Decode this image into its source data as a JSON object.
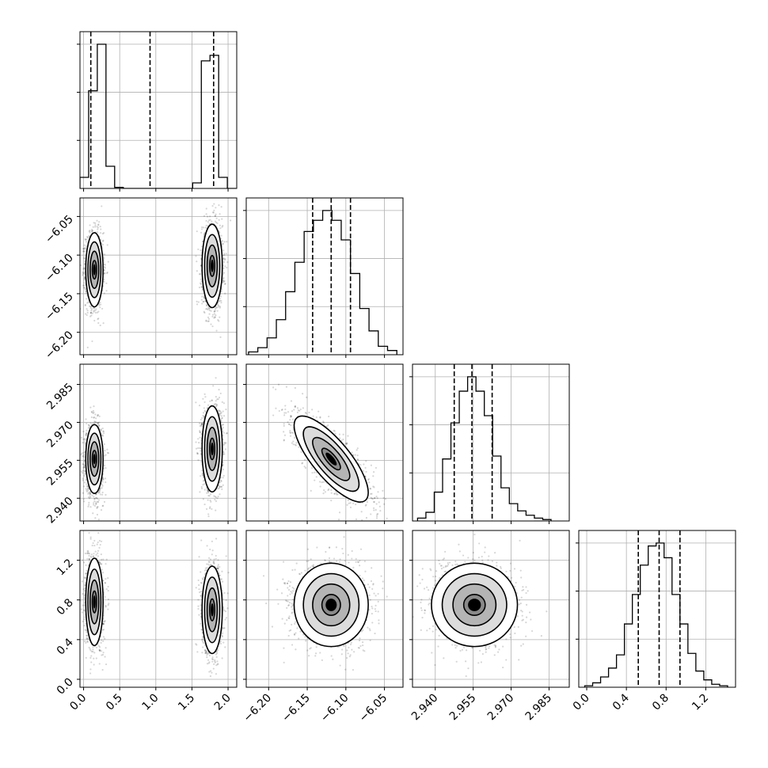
{
  "chart_data": {
    "type": "corner",
    "variables": [
      {
        "ticks": [
          "0.0",
          "0.5",
          "1.0",
          "1.5",
          "2.0"
        ],
        "tick_values": [
          0.0,
          0.5,
          1.0,
          1.5,
          2.0
        ],
        "range": [
          -0.05,
          2.12
        ]
      },
      {
        "ticks": [
          "−6.20",
          "−6.15",
          "−6.10",
          "−6.05"
        ],
        "tick_values": [
          -6.2,
          -6.15,
          -6.1,
          -6.05
        ],
        "range": [
          -6.229,
          -6.026
        ]
      },
      {
        "ticks": [
          "2.940",
          "2.955",
          "2.970",
          "2.985"
        ],
        "tick_values": [
          2.94,
          2.955,
          2.97,
          2.985
        ],
        "range": [
          2.931,
          2.993
        ]
      },
      {
        "ticks": [
          "0.0",
          "0.4",
          "0.8",
          "1.2"
        ],
        "tick_values": [
          0.0,
          0.4,
          0.8,
          1.2
        ],
        "range": [
          -0.08,
          1.5
        ]
      }
    ],
    "grid": true,
    "histograms": [
      {
        "variable": 0,
        "quantiles": [
          0.1,
          0.92,
          1.8
        ],
        "bin_edges": [
          -0.05,
          0.07,
          0.19,
          0.31,
          0.43,
          0.55,
          0.67,
          0.79,
          0.91,
          1.03,
          1.15,
          1.27,
          1.39,
          1.51,
          1.63,
          1.75,
          1.87,
          1.99,
          2.11
        ],
        "counts": [
          0.1,
          0.88,
          1.3,
          0.2,
          0.01,
          0,
          0,
          0,
          0,
          0,
          0,
          0,
          0,
          0.05,
          1.15,
          1.2,
          0.1,
          0
        ]
      },
      {
        "variable": 1,
        "quantiles": [
          -6.143,
          -6.119,
          -6.094
        ],
        "bin_edges": [
          -6.226,
          -6.214,
          -6.202,
          -6.19,
          -6.178,
          -6.166,
          -6.154,
          -6.142,
          -6.13,
          -6.118,
          -6.106,
          -6.094,
          -6.082,
          -6.07,
          -6.058,
          -6.046,
          -6.034
        ],
        "counts": [
          0.02,
          0.05,
          0.12,
          0.25,
          0.45,
          0.66,
          0.88,
          0.96,
          1.03,
          0.96,
          0.82,
          0.58,
          0.33,
          0.17,
          0.06,
          0.03
        ]
      },
      {
        "variable": 2,
        "quantiles": [
          2.9475,
          2.9545,
          2.9625
        ],
        "bin_edges": [
          2.933,
          2.9363,
          2.9396,
          2.9429,
          2.9462,
          2.9495,
          2.9528,
          2.9561,
          2.9594,
          2.9627,
          2.966,
          2.9693,
          2.9726,
          2.9759,
          2.9792,
          2.9825,
          2.9858
        ],
        "counts": [
          0.02,
          0.06,
          0.2,
          0.43,
          0.68,
          0.9,
          1.0,
          0.9,
          0.73,
          0.45,
          0.23,
          0.12,
          0.07,
          0.04,
          0.02,
          0.01
        ]
      },
      {
        "variable": 3,
        "quantiles": [
          0.52,
          0.73,
          0.94
        ],
        "bin_edges": [
          -0.02,
          0.06,
          0.14,
          0.22,
          0.3,
          0.38,
          0.46,
          0.54,
          0.62,
          0.7,
          0.78,
          0.86,
          0.94,
          1.02,
          1.1,
          1.18,
          1.26,
          1.34,
          1.42
        ],
        "counts": [
          0.01,
          0.03,
          0.07,
          0.13,
          0.22,
          0.43,
          0.63,
          0.83,
          0.96,
          0.98,
          0.88,
          0.63,
          0.43,
          0.23,
          0.11,
          0.05,
          0.02,
          0.01
        ]
      }
    ],
    "scatter_panels": [
      {
        "x": 0,
        "y": 1,
        "clusters": [
          {
            "cx": 0.15,
            "cy": -6.119,
            "sx": 0.06,
            "sy": 0.024,
            "rho": 0
          },
          {
            "cx": 1.78,
            "cy": -6.114,
            "sx": 0.07,
            "sy": 0.027,
            "rho": 0
          }
        ]
      },
      {
        "x": 0,
        "y": 2,
        "clusters": [
          {
            "cx": 0.15,
            "cy": 2.9555,
            "sx": 0.06,
            "sy": 0.0068,
            "rho": 0
          },
          {
            "cx": 1.78,
            "cy": 2.9595,
            "sx": 0.07,
            "sy": 0.0085,
            "rho": 0
          }
        ]
      },
      {
        "x": 0,
        "y": 3,
        "clusters": [
          {
            "cx": 0.15,
            "cy": 0.78,
            "sx": 0.06,
            "sy": 0.22,
            "rho": 0
          },
          {
            "cx": 1.78,
            "cy": 0.7,
            "sx": 0.07,
            "sy": 0.22,
            "rho": 0
          }
        ]
      },
      {
        "x": 1,
        "y": 2,
        "clusters": [
          {
            "cx": -6.119,
            "cy": 2.9555,
            "sx": 0.024,
            "sy": 0.0085,
            "rho": -0.78
          }
        ]
      },
      {
        "x": 1,
        "y": 3,
        "clusters": [
          {
            "cx": -6.119,
            "cy": 0.75,
            "sx": 0.024,
            "sy": 0.21,
            "rho": 0
          }
        ]
      },
      {
        "x": 2,
        "y": 3,
        "clusters": [
          {
            "cx": 2.9555,
            "cy": 0.75,
            "sx": 0.0085,
            "sy": 0.21,
            "rho": 0
          }
        ]
      }
    ],
    "contour_levels_sigma": [
      0.5,
      1.0,
      1.5,
      2.0
    ]
  }
}
